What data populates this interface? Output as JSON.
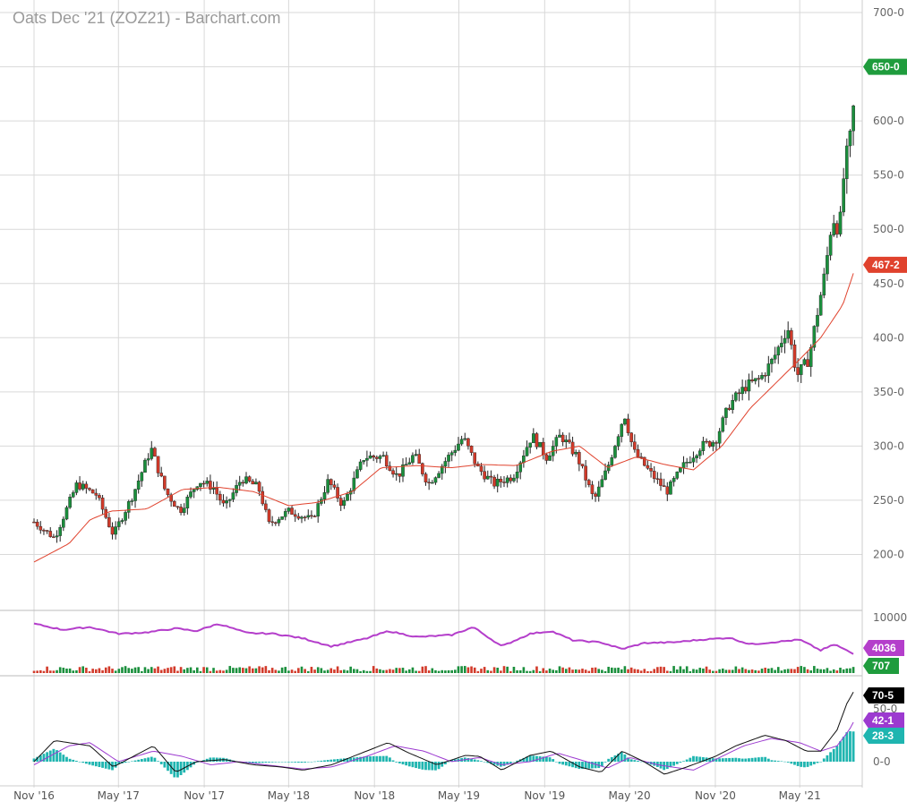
{
  "title": "Oats Dec '21 (ZOZ21) - Barchart.com",
  "chart_data": [
    {
      "type": "candlestick",
      "x_ticks": [
        "Nov '16",
        "May '17",
        "Nov '17",
        "May '18",
        "Nov '18",
        "May '19",
        "Nov '19",
        "May '20",
        "Nov '20",
        "May '21"
      ],
      "y_ticks": [
        "200-0",
        "250-0",
        "300-0",
        "350-0",
        "400-0",
        "450-0",
        "500-0",
        "550-0",
        "600-0",
        "650-0",
        "700-0"
      ],
      "ylim": [
        150,
        705
      ],
      "series": [
        {
          "name": "price",
          "color_up": "#1a8f3c",
          "color_down": "#d23a2a",
          "anchors": [
            [
              "2016-11-01",
              230
            ],
            [
              "2016-12-15",
              215
            ],
            [
              "2017-02-01",
              265
            ],
            [
              "2017-03-15",
              255
            ],
            [
              "2017-04-20",
              218
            ],
            [
              "2017-06-01",
              255
            ],
            [
              "2017-07-10",
              298
            ],
            [
              "2017-08-10",
              258
            ],
            [
              "2017-09-10",
              240
            ],
            [
              "2017-10-20",
              268
            ],
            [
              "2017-11-20",
              262
            ],
            [
              "2017-12-15",
              243
            ],
            [
              "2018-01-20",
              270
            ],
            [
              "2018-02-25",
              262
            ],
            [
              "2018-03-20",
              228
            ],
            [
              "2018-05-01",
              240
            ],
            [
              "2018-06-20",
              232
            ],
            [
              "2018-07-25",
              268
            ],
            [
              "2018-08-25",
              245
            ],
            [
              "2018-10-10",
              290
            ],
            [
              "2018-11-20",
              290
            ],
            [
              "2018-12-20",
              272
            ],
            [
              "2019-01-25",
              292
            ],
            [
              "2019-02-25",
              265
            ],
            [
              "2019-04-05",
              288
            ],
            [
              "2019-05-10",
              308
            ],
            [
              "2019-06-10",
              280
            ],
            [
              "2019-07-15",
              265
            ],
            [
              "2019-08-25",
              272
            ],
            [
              "2019-10-05",
              310
            ],
            [
              "2019-11-05",
              290
            ],
            [
              "2019-12-05",
              310
            ],
            [
              "2020-01-10",
              290
            ],
            [
              "2020-02-15",
              250
            ],
            [
              "2020-03-15",
              280
            ],
            [
              "2020-04-20",
              330
            ],
            [
              "2020-05-10",
              295
            ],
            [
              "2020-06-15",
              275
            ],
            [
              "2020-07-20",
              258
            ],
            [
              "2020-08-25",
              282
            ],
            [
              "2020-10-01",
              300
            ],
            [
              "2020-11-01",
              305
            ],
            [
              "2020-12-01",
              338
            ],
            [
              "2021-01-05",
              355
            ],
            [
              "2021-02-05",
              362
            ],
            [
              "2021-03-05",
              380
            ],
            [
              "2021-04-05",
              410
            ],
            [
              "2021-04-25",
              365
            ],
            [
              "2021-05-20",
              380
            ],
            [
              "2021-06-10",
              428
            ],
            [
              "2021-06-25",
              462
            ],
            [
              "2021-07-10",
              512
            ],
            [
              "2021-07-25",
              498
            ],
            [
              "2021-08-05",
              558
            ],
            [
              "2021-08-20",
              590
            ],
            [
              "2021-08-30",
              650
            ]
          ]
        },
        {
          "name": "moving-average",
          "color": "#e0422d",
          "anchors": [
            [
              "2016-11-01",
              193
            ],
            [
              "2017-01-15",
              210
            ],
            [
              "2017-03-01",
              232
            ],
            [
              "2017-04-15",
              240
            ],
            [
              "2017-07-01",
              242
            ],
            [
              "2017-09-15",
              260
            ],
            [
              "2017-12-01",
              262
            ],
            [
              "2018-02-15",
              258
            ],
            [
              "2018-05-01",
              245
            ],
            [
              "2018-07-01",
              248
            ],
            [
              "2018-09-15",
              258
            ],
            [
              "2018-11-15",
              280
            ],
            [
              "2019-02-01",
              282
            ],
            [
              "2019-04-15",
              280
            ],
            [
              "2019-06-15",
              283
            ],
            [
              "2019-09-01",
              282
            ],
            [
              "2019-11-15",
              295
            ],
            [
              "2020-01-15",
              300
            ],
            [
              "2020-03-15",
              280
            ],
            [
              "2020-05-15",
              290
            ],
            [
              "2020-07-15",
              283
            ],
            [
              "2020-09-15",
              278
            ],
            [
              "2020-11-15",
              300
            ],
            [
              "2021-01-15",
              335
            ],
            [
              "2021-03-15",
              360
            ],
            [
              "2021-05-01",
              380
            ],
            [
              "2021-06-15",
              400
            ],
            [
              "2021-08-01",
              430
            ],
            [
              "2021-08-30",
              467
            ]
          ]
        }
      ],
      "last_price": "650-0",
      "ma_value": "467-2"
    },
    {
      "type": "line+bar",
      "y_ticks": [
        "10000"
      ],
      "series": [
        {
          "name": "open-interest",
          "color": "#b43ecb",
          "anchors": [
            [
              "2016-11-01",
              8800
            ],
            [
              "2017-01-01",
              7900
            ],
            [
              "2017-03-01",
              8300
            ],
            [
              "2017-05-01",
              7300
            ],
            [
              "2017-07-01",
              7500
            ],
            [
              "2017-09-01",
              8100
            ],
            [
              "2017-10-15",
              7700
            ],
            [
              "2017-12-01",
              8800
            ],
            [
              "2018-02-01",
              7400
            ],
            [
              "2018-04-01",
              7300
            ],
            [
              "2018-06-01",
              6600
            ],
            [
              "2018-08-01",
              5400
            ],
            [
              "2018-10-15",
              6600
            ],
            [
              "2018-12-01",
              7700
            ],
            [
              "2019-02-01",
              6800
            ],
            [
              "2019-04-15",
              7100
            ],
            [
              "2019-06-01",
              8300
            ],
            [
              "2019-08-01",
              5400
            ],
            [
              "2019-10-01",
              7300
            ],
            [
              "2019-11-15",
              7700
            ],
            [
              "2020-01-01",
              6300
            ],
            [
              "2020-03-01",
              6000
            ],
            [
              "2020-04-15",
              5000
            ],
            [
              "2020-06-01",
              5900
            ],
            [
              "2020-08-01",
              6000
            ],
            [
              "2020-10-01",
              6400
            ],
            [
              "2020-12-01",
              6700
            ],
            [
              "2021-01-15",
              5700
            ],
            [
              "2021-03-01",
              6000
            ],
            [
              "2021-05-01",
              6400
            ],
            [
              "2021-06-15",
              4800
            ],
            [
              "2021-07-15",
              5700
            ],
            [
              "2021-08-30",
              4036
            ]
          ]
        },
        {
          "name": "volume",
          "avg": 707
        }
      ],
      "open_interest_value": "4036",
      "volume_value": "707"
    },
    {
      "type": "macd",
      "y_ticks": [
        "0-0",
        "50-0"
      ],
      "series": [
        {
          "name": "macd",
          "color": "#111111",
          "anchors": [
            [
              "2016-11-01",
              0
            ],
            [
              "2016-12-15",
              20
            ],
            [
              "2017-03-01",
              15
            ],
            [
              "2017-04-20",
              -5
            ],
            [
              "2017-07-15",
              15
            ],
            [
              "2017-09-01",
              -10
            ],
            [
              "2017-10-15",
              0
            ],
            [
              "2017-12-15",
              2
            ],
            [
              "2018-02-15",
              -3
            ],
            [
              "2018-04-15",
              -5
            ],
            [
              "2018-06-01",
              -8
            ],
            [
              "2018-08-01",
              -3
            ],
            [
              "2018-10-15",
              10
            ],
            [
              "2018-11-30",
              18
            ],
            [
              "2019-01-15",
              8
            ],
            [
              "2019-03-15",
              -3
            ],
            [
              "2019-05-15",
              6
            ],
            [
              "2019-06-15",
              5
            ],
            [
              "2019-08-01",
              -8
            ],
            [
              "2019-10-01",
              6
            ],
            [
              "2019-11-15",
              10
            ],
            [
              "2020-01-15",
              -5
            ],
            [
              "2020-03-01",
              -10
            ],
            [
              "2020-04-15",
              10
            ],
            [
              "2020-06-01",
              0
            ],
            [
              "2020-07-15",
              -12
            ],
            [
              "2020-09-01",
              -5
            ],
            [
              "2020-11-01",
              5
            ],
            [
              "2020-12-15",
              15
            ],
            [
              "2021-02-15",
              25
            ],
            [
              "2021-04-01",
              20
            ],
            [
              "2021-05-15",
              10
            ],
            [
              "2021-06-15",
              10
            ],
            [
              "2021-07-20",
              30
            ],
            [
              "2021-08-10",
              55
            ],
            [
              "2021-08-30",
              70.5
            ]
          ]
        },
        {
          "name": "signal",
          "color": "#9c3ad0",
          "anchors": [
            [
              "2016-11-01",
              -3
            ],
            [
              "2017-01-15",
              15
            ],
            [
              "2017-03-01",
              18
            ],
            [
              "2017-05-01",
              0
            ],
            [
              "2017-07-15",
              10
            ],
            [
              "2017-09-15",
              5
            ],
            [
              "2017-11-15",
              -3
            ],
            [
              "2018-01-15",
              0
            ],
            [
              "2018-04-01",
              -4
            ],
            [
              "2018-06-01",
              -7
            ],
            [
              "2018-08-01",
              -5
            ],
            [
              "2018-10-15",
              5
            ],
            [
              "2018-12-15",
              15
            ],
            [
              "2019-02-15",
              10
            ],
            [
              "2019-04-15",
              0
            ],
            [
              "2019-06-15",
              4
            ],
            [
              "2019-08-01",
              -3
            ],
            [
              "2019-10-01",
              0
            ],
            [
              "2019-11-30",
              8
            ],
            [
              "2020-01-30",
              0
            ],
            [
              "2020-03-15",
              -6
            ],
            [
              "2020-05-01",
              4
            ],
            [
              "2020-07-01",
              -3
            ],
            [
              "2020-09-15",
              -8
            ],
            [
              "2020-11-01",
              2
            ],
            [
              "2021-01-01",
              15
            ],
            [
              "2021-03-01",
              22
            ],
            [
              "2021-05-01",
              18
            ],
            [
              "2021-06-15",
              10
            ],
            [
              "2021-07-20",
              15
            ],
            [
              "2021-08-15",
              30
            ],
            [
              "2021-08-30",
              42.1
            ]
          ]
        },
        {
          "name": "histogram",
          "color": "#1fb5b0"
        }
      ],
      "macd_value": "70-5",
      "signal_value": "42-1",
      "histogram_value": "28-3"
    }
  ],
  "colors": {
    "grid": "#d9d9d9",
    "up": "#1a8f3c",
    "down": "#d23a2a",
    "price_flag": "#1f9c3d",
    "ma_flag": "#e0422d",
    "oi_flag": "#b43ecb",
    "vol_flag": "#1f9c3d",
    "macd_flag": "#000000",
    "signal_flag": "#9c3ad0",
    "hist_flag": "#1fb5b0"
  }
}
